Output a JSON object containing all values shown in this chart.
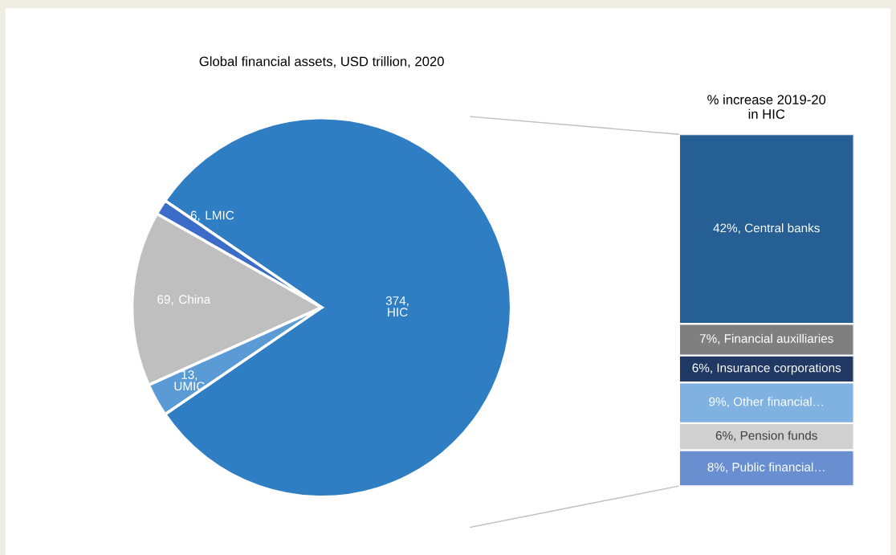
{
  "chart_data": [
    {
      "type": "pie",
      "title": "Global financial assets, USD trillion, 2020",
      "categories": [
        "HIC",
        "LMIC",
        "China",
        "UMIC"
      ],
      "values": [
        374,
        6,
        69,
        13
      ],
      "colors": [
        "#2f7dc2",
        "#3a6cc8",
        "#bfbfbf",
        "#5b9bd5"
      ],
      "value_labels": [
        "374,",
        "6,",
        "69,",
        "13,"
      ]
    },
    {
      "type": "bar",
      "stacked": true,
      "title": "% increase 2019-20\nin HIC",
      "categories": [
        null
      ],
      "series": [
        {
          "color": "#6a8fd0",
          "values": [
            8
          ],
          "value_labels": [
            "8%, Public financial…"
          ]
        },
        {
          "color": "#d0d0d0",
          "values": [
            6
          ],
          "value_labels": [
            "6%, Pension funds"
          ]
        },
        {
          "color": "#7fb2e0",
          "values": [
            9
          ],
          "value_labels": [
            "9%, Other financial…"
          ]
        },
        {
          "color": "#203864",
          "values": [
            6
          ],
          "value_labels": [
            "6%, Insurance corporations"
          ]
        },
        {
          "color": "#7f7f7f",
          "values": [
            7
          ],
          "value_labels": [
            "7%, Financial auxilliaries"
          ]
        },
        {
          "color": "#255f93",
          "values": [
            42
          ],
          "value_labels": [
            "42%, Central banks"
          ]
        }
      ]
    }
  ]
}
